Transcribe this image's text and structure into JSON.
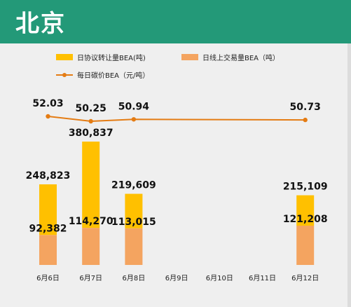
{
  "header": {
    "title": "北京"
  },
  "colors": {
    "header_bg": "#239978",
    "panel_bg": "#efefef",
    "agreement": "#ffc000",
    "online": "#f4a460",
    "price": "#e47c14"
  },
  "chart_data": {
    "type": "bar",
    "title": "",
    "xlabel": "",
    "ylabel": "",
    "categories": [
      "6月6日",
      "6月7日",
      "6月8日",
      "6月9日",
      "6月10日",
      "6月11日",
      "6月12日"
    ],
    "series": [
      {
        "name": "日协议转让量BEA(吨)",
        "type": "bar",
        "values": [
          248823,
          380837,
          219609,
          null,
          null,
          null,
          215109
        ]
      },
      {
        "name": "日线上交易量BEA（吨）",
        "type": "bar",
        "values": [
          92382,
          114270,
          113015,
          null,
          null,
          null,
          121208
        ]
      },
      {
        "name": "每日碳价BEA（元/吨）",
        "type": "line",
        "values": [
          52.03,
          50.25,
          50.94,
          null,
          null,
          null,
          50.73
        ]
      }
    ],
    "legend": "top",
    "grid": false
  }
}
